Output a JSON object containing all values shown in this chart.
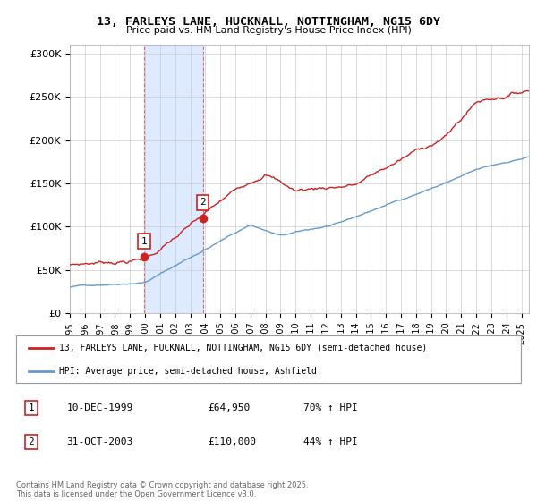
{
  "title": "13, FARLEYS LANE, HUCKNALL, NOTTINGHAM, NG15 6DY",
  "subtitle": "Price paid vs. HM Land Registry's House Price Index (HPI)",
  "hpi_color": "#6699cc",
  "property_color": "#cc2222",
  "marker_color": "#cc2222",
  "shade_color": "#cce0ff",
  "ylim": [
    0,
    310000
  ],
  "yticks": [
    0,
    50000,
    100000,
    150000,
    200000,
    250000,
    300000
  ],
  "ytick_labels": [
    "£0",
    "£50K",
    "£100K",
    "£150K",
    "£200K",
    "£250K",
    "£300K"
  ],
  "purchase1_year": 1999.94,
  "purchase1_price": 64950,
  "purchase1_label": "1",
  "purchase1_date": "10-DEC-1999",
  "purchase1_pct": "70% ↑ HPI",
  "purchase2_year": 2003.83,
  "purchase2_price": 110000,
  "purchase2_label": "2",
  "purchase2_date": "31-OCT-2003",
  "purchase2_pct": "44% ↑ HPI",
  "legend_line1": "13, FARLEYS LANE, HUCKNALL, NOTTINGHAM, NG15 6DY (semi-detached house)",
  "legend_line2": "HPI: Average price, semi-detached house, Ashfield",
  "footer": "Contains HM Land Registry data © Crown copyright and database right 2025.\nThis data is licensed under the Open Government Licence v3.0."
}
